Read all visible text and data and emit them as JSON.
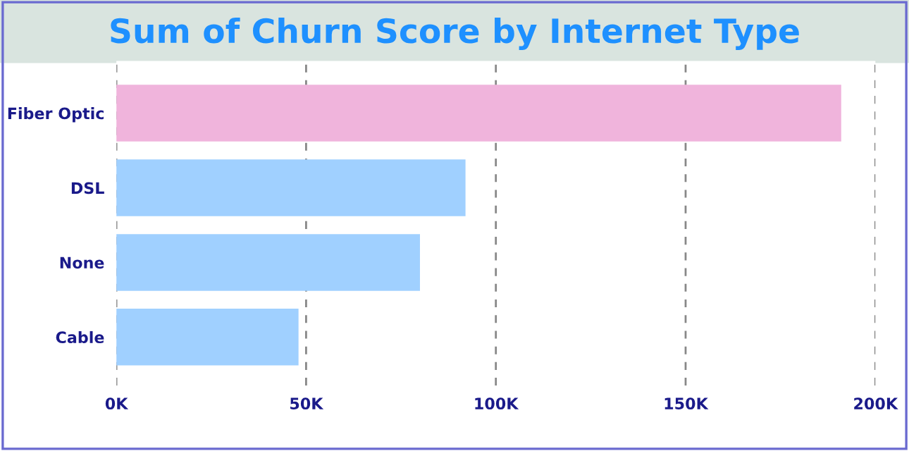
{
  "chart_data": {
    "type": "bar",
    "orientation": "horizontal",
    "title": "Sum of Churn Score by Internet Type",
    "categories": [
      "Fiber Optic",
      "DSL",
      "None",
      "Cable"
    ],
    "values": [
      191000,
      92000,
      80000,
      48000
    ],
    "colors": [
      "#f0b4dc",
      "#a0d0ff",
      "#a0d0ff",
      "#a0d0ff"
    ],
    "xlim": [
      0,
      200000
    ],
    "xticks": [
      {
        "value": 0,
        "label": "0K"
      },
      {
        "value": 50000,
        "label": "50K"
      },
      {
        "value": 100000,
        "label": "100K"
      },
      {
        "value": 150000,
        "label": "150K"
      },
      {
        "value": 200000,
        "label": "200K"
      }
    ],
    "grid": "x"
  }
}
